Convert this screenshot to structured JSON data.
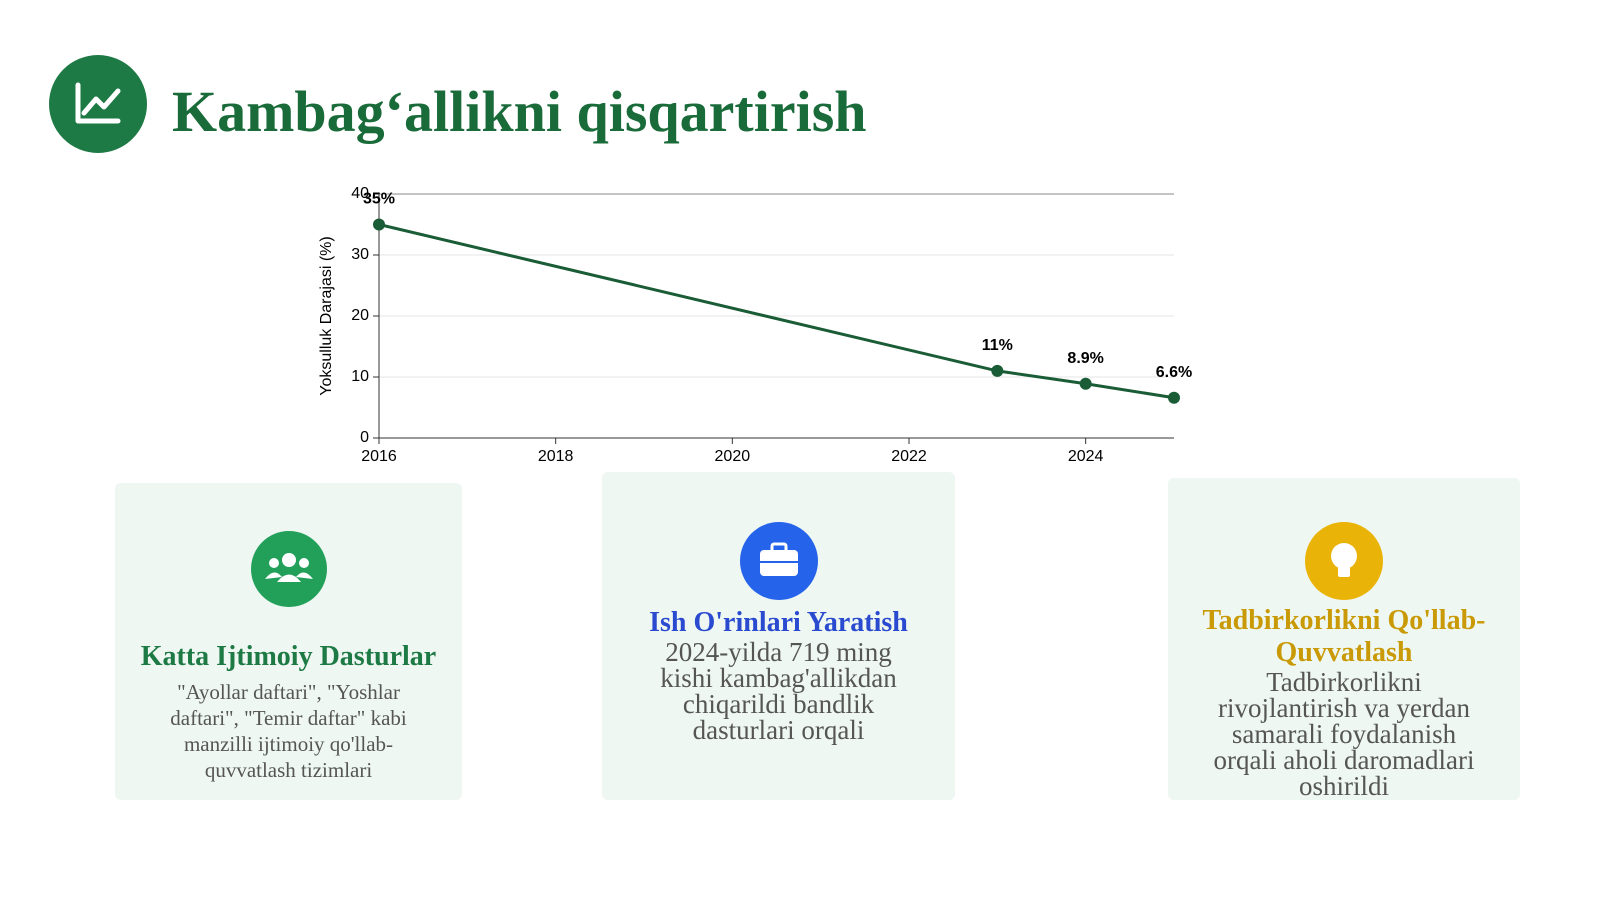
{
  "header": {
    "title": "Kambag‘allikni qisqartirish"
  },
  "chart_data": {
    "type": "line",
    "y_label": "Yoksulluk Darajasi (%)",
    "x": [
      2016,
      2023,
      2024,
      2025
    ],
    "values": [
      35,
      11,
      8.9,
      6.6
    ],
    "value_labels": [
      "35%",
      "11%",
      "8.9%",
      "6.6%"
    ],
    "color": "#1a5c36",
    "xlim": [
      2016,
      2025
    ],
    "xticks": [
      2016,
      2018,
      2020,
      2022,
      2024
    ],
    "ylim": [
      0,
      40
    ],
    "yticks": [
      0,
      10,
      20,
      30,
      40
    ],
    "grid": true
  },
  "cards": [
    {
      "title": "Katta Ijtimoiy Dasturlar",
      "text": "\"Ayollar daftari\", \"Yoshlar daftari\", \"Temir daftar\" kabi manzilli ijtimoiy qo'llab-quvvatlash tizimlari"
    },
    {
      "title": "Ish O'rinlari Yaratish",
      "text": "2024-yilda 719 ming kishi kambag'allikdan chiqarildi bandlik dasturlari orqali"
    },
    {
      "title": "Tadbirkorlikni Qo'llab-Quvvatlash",
      "text": "Tadbirkorlikni rivojlantirish va yerdan samarali foydalanish orqali aholi daromadlari oshirildi"
    }
  ]
}
